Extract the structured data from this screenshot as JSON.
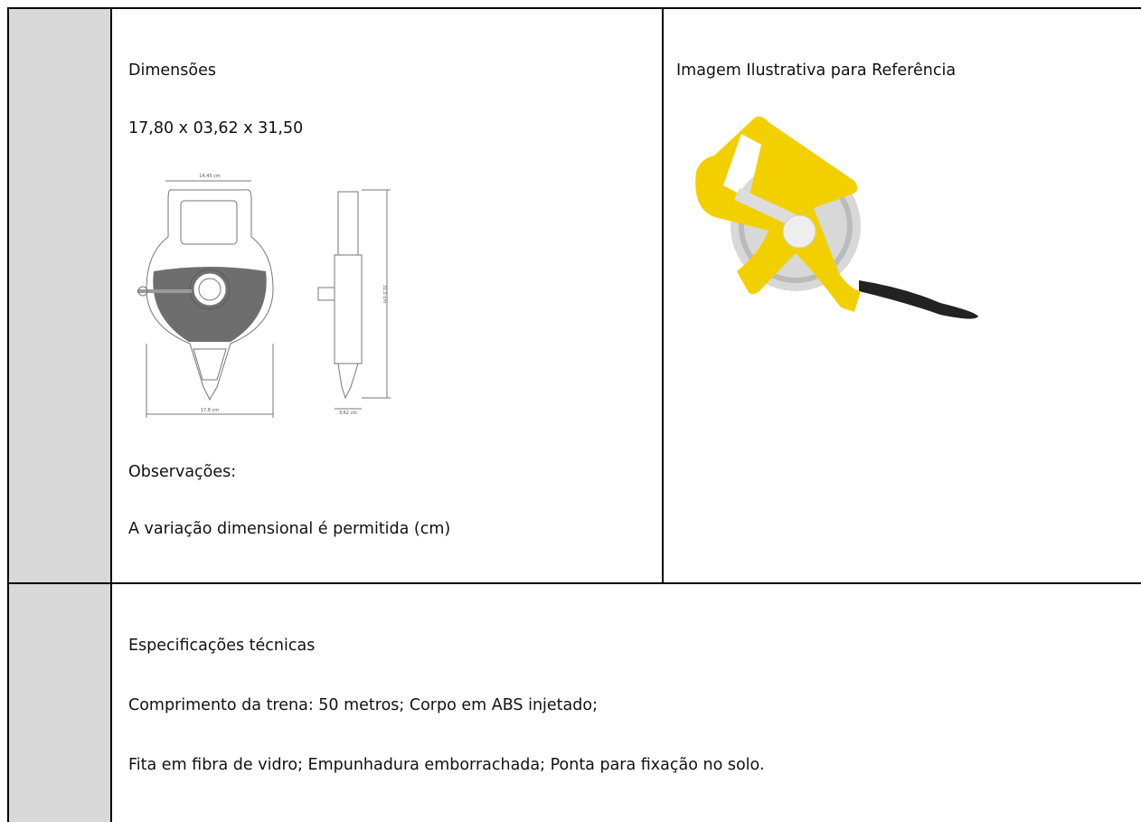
{
  "dimensions": {
    "title": "Dimensões",
    "value": "17,80 x 03,62 x 31,50",
    "drawing_labels": [
      "14,45 cm",
      "17,8 cm",
      "3,62 cm",
      "31,5 cm"
    ],
    "notes_title": "Observações:",
    "notes_text": "A variação dimensional é permitida (cm)"
  },
  "reference": {
    "title": "Imagem Ilustrativa para Referência"
  },
  "specs": {
    "title": "Especificações técnicas",
    "lines": [
      "Comprimento da trena: 50 metros; Corpo em ABS injetado;",
      "Fita em fibra de vidro; Empunhadura emborrachada; Ponta para fixação no solo."
    ]
  }
}
